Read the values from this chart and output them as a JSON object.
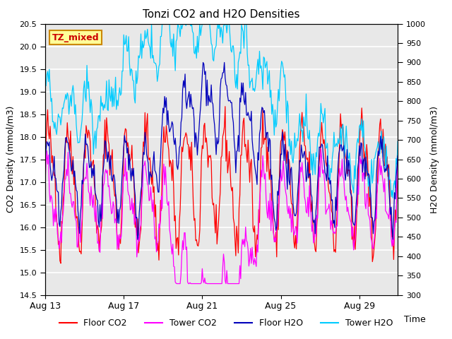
{
  "title": "Tonzi CO2 and H2O Densities",
  "xlabel": "Time",
  "ylabel_left": "CO2 Density (mmol/m3)",
  "ylabel_right": "H2O Density (mmol/m3)",
  "ylim_left": [
    14.5,
    20.5
  ],
  "ylim_right": [
    300,
    1000
  ],
  "xtick_labels": [
    "Aug 13",
    "Aug 17",
    "Aug 21",
    "Aug 25",
    "Aug 29"
  ],
  "xtick_positions": [
    0,
    96,
    192,
    288,
    384
  ],
  "n_points": 432,
  "legend_labels": [
    "Floor CO2",
    "Tower CO2",
    "Floor H2O",
    "Tower H2O"
  ],
  "line_colors": [
    "#ff0000",
    "#ff00ff",
    "#0000bb",
    "#00ccff"
  ],
  "annotation_text": "TZ_mixed",
  "annotation_bg": "#ffff99",
  "annotation_border": "#cc8800",
  "plot_bg": "#e8e8e8",
  "seed": 42
}
